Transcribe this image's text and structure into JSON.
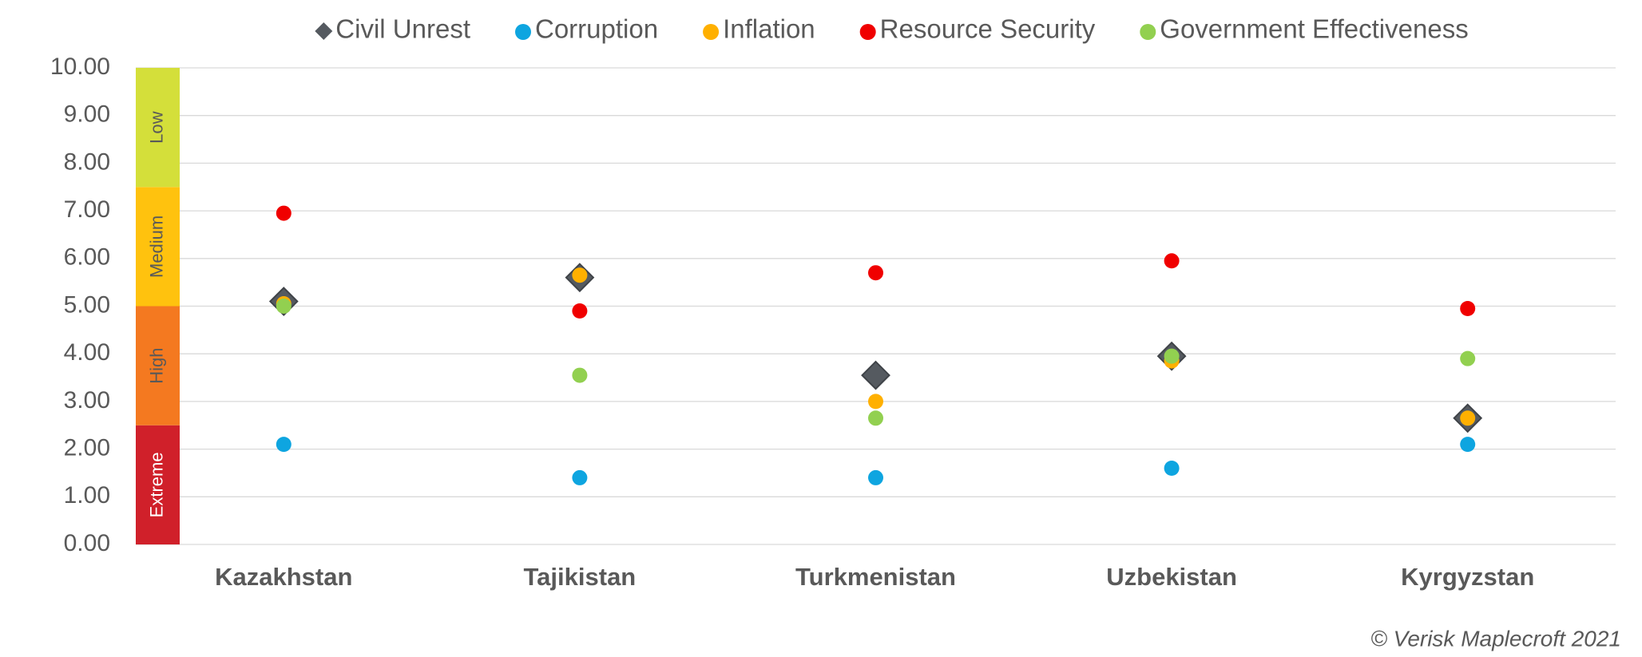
{
  "chart_data": {
    "type": "scatter",
    "categories": [
      "Kazakhstan",
      "Tajikistan",
      "Turkmenistan",
      "Uzbekistan",
      "Kyrgyzstan"
    ],
    "series": [
      {
        "name": "Civil Unrest",
        "color": "#555a60",
        "marker": "diamond",
        "values": [
          5.1,
          5.6,
          3.55,
          3.95,
          2.65
        ]
      },
      {
        "name": "Corruption",
        "color": "#0ea5e0",
        "marker": "circle",
        "values": [
          2.1,
          1.4,
          1.4,
          1.6,
          2.1
        ]
      },
      {
        "name": "Inflation",
        "color": "#ffb000",
        "marker": "circle",
        "values": [
          5.05,
          5.65,
          3.0,
          3.85,
          2.65
        ]
      },
      {
        "name": "Resource Security",
        "color": "#f00000",
        "marker": "circle",
        "values": [
          6.95,
          4.9,
          5.7,
          5.95,
          4.95
        ]
      },
      {
        "name": "Government Effectiveness",
        "color": "#92d050",
        "marker": "circle",
        "values": [
          5.0,
          3.55,
          2.65,
          3.95,
          3.9
        ]
      }
    ],
    "bands": [
      {
        "label": "Extreme",
        "from": 0,
        "to": 2.5,
        "color": "#d0202a",
        "text_color": "#ffffff"
      },
      {
        "label": "High",
        "from": 2.5,
        "to": 5,
        "color": "#f47920",
        "text_color": "#595959"
      },
      {
        "label": "Medium",
        "from": 5,
        "to": 7.5,
        "color": "#ffc20e",
        "text_color": "#595959"
      },
      {
        "label": "Low",
        "from": 7.5,
        "to": 10,
        "color": "#d4df3a",
        "text_color": "#595959"
      }
    ],
    "ylim": [
      0,
      10
    ],
    "yticks": [
      {
        "value": 0,
        "label": "0.00"
      },
      {
        "value": 1,
        "label": "1.00"
      },
      {
        "value": 2,
        "label": "2.00"
      },
      {
        "value": 3,
        "label": "3.00"
      },
      {
        "value": 4,
        "label": "4.00"
      },
      {
        "value": 5,
        "label": "5.00"
      },
      {
        "value": 6,
        "label": "6.00"
      },
      {
        "value": 7,
        "label": "7.00"
      },
      {
        "value": 8,
        "label": "8.00"
      },
      {
        "value": 9,
        "label": "9.00"
      },
      {
        "value": 10,
        "label": "10.00"
      }
    ],
    "grid": true,
    "legend": "top",
    "source": "© Verisk Maplecroft 2021"
  }
}
